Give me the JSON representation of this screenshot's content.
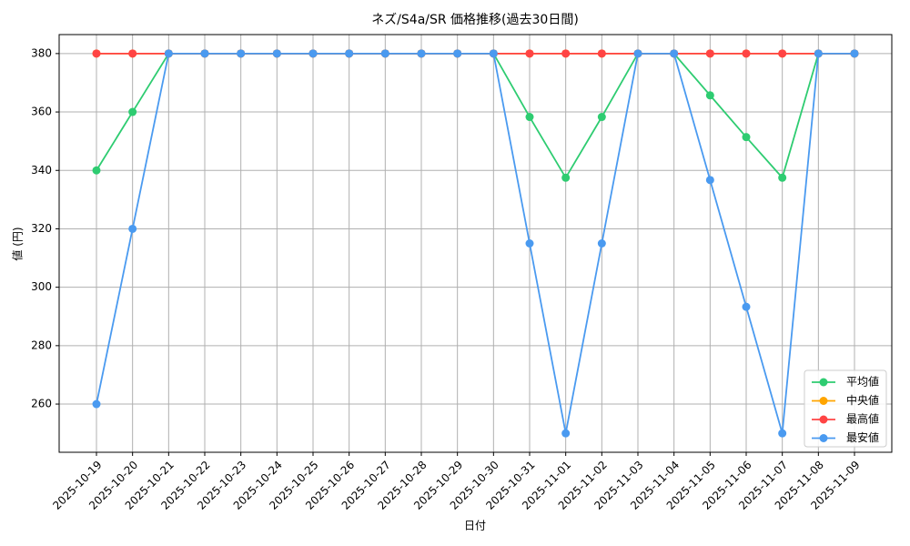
{
  "chart_data": {
    "type": "line",
    "title": "ネズ/S4a/SR 価格推移(過去30日間)",
    "x_label": "日付",
    "y_label": "値 (円)",
    "categories": [
      "2025-10-19",
      "2025-10-20",
      "2025-10-21",
      "2025-10-22",
      "2025-10-23",
      "2025-10-24",
      "2025-10-25",
      "2025-10-26",
      "2025-10-27",
      "2025-10-28",
      "2025-10-29",
      "2025-10-30",
      "2025-10-31",
      "2025-11-01",
      "2025-11-02",
      "2025-11-03",
      "2025-11-04",
      "2025-11-05",
      "2025-11-06",
      "2025-11-07",
      "2025-11-08",
      "2025-11-09"
    ],
    "series": [
      {
        "name": "平均値",
        "color": "#2ecc71",
        "values": [
          340,
          360,
          380,
          380,
          380,
          380,
          380,
          380,
          380,
          380,
          380,
          380,
          358.3,
          337.5,
          358.3,
          380,
          380,
          365.7,
          351.4,
          337.5,
          380,
          380
        ]
      },
      {
        "name": "中央値",
        "color": "#ffa500",
        "values": [
          380,
          380,
          380,
          380,
          380,
          380,
          380,
          380,
          380,
          380,
          380,
          380,
          380,
          380,
          380,
          380,
          380,
          380,
          380,
          380,
          380,
          380
        ]
      },
      {
        "name": "最高値",
        "color": "#ff4444",
        "values": [
          380,
          380,
          380,
          380,
          380,
          380,
          380,
          380,
          380,
          380,
          380,
          380,
          380,
          380,
          380,
          380,
          380,
          380,
          380,
          380,
          380,
          380
        ]
      },
      {
        "name": "最安値",
        "color": "#4a9af0",
        "values": [
          260,
          320,
          380,
          380,
          380,
          380,
          380,
          380,
          380,
          380,
          380,
          380,
          315,
          250,
          315,
          380,
          380,
          336.7,
          293.3,
          250,
          380,
          380
        ]
      }
    ],
    "ylim": [
      243.5,
      386.5
    ],
    "yticks": [
      260,
      280,
      300,
      320,
      340,
      360,
      380
    ],
    "grid": true,
    "legend": "lower right"
  }
}
